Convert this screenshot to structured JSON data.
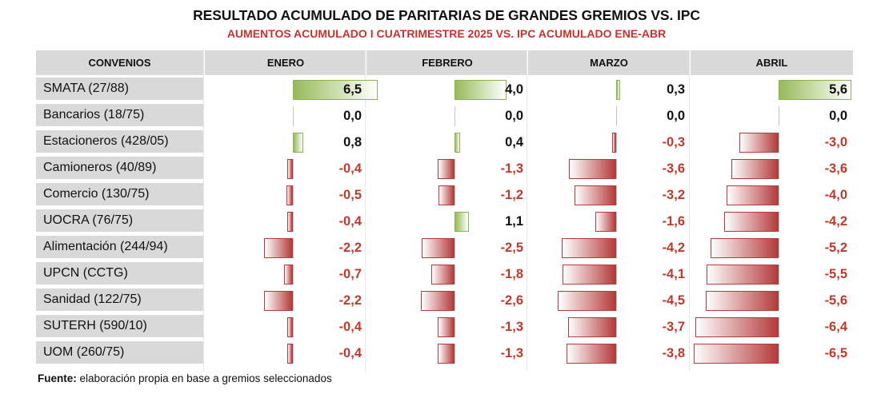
{
  "title": "RESULTADO ACUMULADO DE PARITARIAS DE GRANDES GREMIOS VS. IPC",
  "subtitle": "AUMENTOS ACUMULADO I CUATRIMESTRE 2025 VS. IPC ACUMULADO ENE-ABR",
  "footer": {
    "label": "Fuente:",
    "text": " elaboración propia en base a gremios seleccionados"
  },
  "colors": {
    "positive": "#96bb58",
    "negative": "#b33b3b",
    "negative_text": "#c0392b",
    "header_bg": "#d9d9d9",
    "subtitle": "#c4342d"
  },
  "chart_data": {
    "type": "bar",
    "row_header": "CONVENIOS",
    "months": [
      "ENERO",
      "FEBRERO",
      "MARZO",
      "ABRIL"
    ],
    "rows": [
      {
        "name": "SMATA (27/88)",
        "values": [
          6.5,
          4.0,
          0.3,
          5.6
        ],
        "labels": [
          "6,5",
          "4,0",
          "0,3",
          "5,6"
        ]
      },
      {
        "name": "Bancarios (18/75)",
        "values": [
          0.0,
          0.0,
          0.0,
          0.0
        ],
        "labels": [
          "0,0",
          "0,0",
          "0,0",
          "0,0"
        ]
      },
      {
        "name": "Estacioneros (428/05)",
        "values": [
          0.8,
          0.4,
          -0.3,
          -3.0
        ],
        "labels": [
          "0,8",
          "0,4",
          "-0,3",
          "-3,0"
        ]
      },
      {
        "name": "Camioneros (40/89)",
        "values": [
          -0.4,
          -1.3,
          -3.6,
          -3.6
        ],
        "labels": [
          "-0,4",
          "-1,3",
          "-3,6",
          "-3,6"
        ]
      },
      {
        "name": "Comercio (130/75)",
        "values": [
          -0.5,
          -1.2,
          -3.2,
          -4.0
        ],
        "labels": [
          "-0,5",
          "-1,2",
          "-3,2",
          "-4,0"
        ]
      },
      {
        "name": "UOCRA (76/75)",
        "values": [
          -0.4,
          1.1,
          -1.6,
          -4.2
        ],
        "labels": [
          "-0,4",
          "1,1",
          "-1,6",
          "-4,2"
        ]
      },
      {
        "name": "Alimentación (244/94)",
        "values": [
          -2.2,
          -2.5,
          -4.2,
          -5.2
        ],
        "labels": [
          "-2,2",
          "-2,5",
          "-4,2",
          "-5,2"
        ]
      },
      {
        "name": "UPCN (CCTG)",
        "values": [
          -0.7,
          -1.8,
          -4.1,
          -5.5
        ],
        "labels": [
          "-0,7",
          "-1,8",
          "-4,1",
          "-5,5"
        ]
      },
      {
        "name": "Sanidad (122/75)",
        "values": [
          -2.2,
          -2.6,
          -4.5,
          -5.6
        ],
        "labels": [
          "-2,2",
          "-2,6",
          "-4,5",
          "-5,6"
        ]
      },
      {
        "name": "SUTERH (590/10)",
        "values": [
          -0.4,
          -1.3,
          -3.7,
          -6.4
        ],
        "labels": [
          "-0,4",
          "-1,3",
          "-3,7",
          "-6,4"
        ]
      },
      {
        "name": "UOM (260/75)",
        "values": [
          -0.4,
          -1.3,
          -3.8,
          -6.5
        ],
        "labels": [
          "-0,4",
          "-1,3",
          "-3,8",
          "-6,5"
        ]
      }
    ]
  }
}
